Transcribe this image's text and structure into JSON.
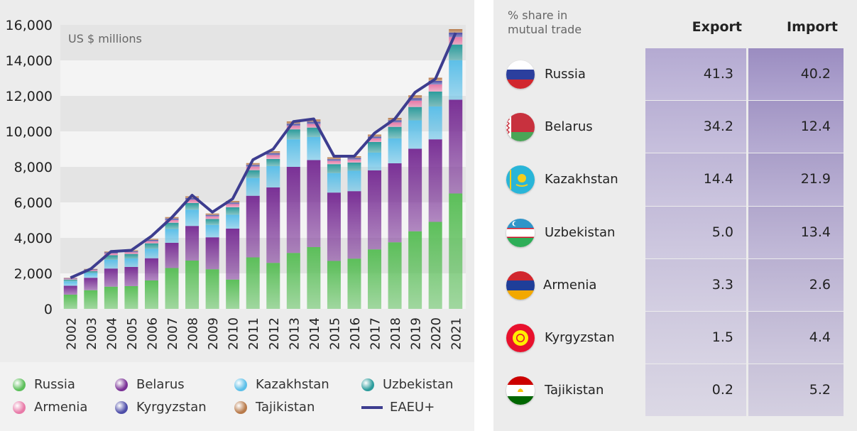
{
  "chart_data": {
    "type": "bar",
    "stacked": true,
    "unit_label": "US $ millions",
    "categories": [
      "2002",
      "2003",
      "2004",
      "2005",
      "2006",
      "2007",
      "2008",
      "2009",
      "2010",
      "2011",
      "2012",
      "2013",
      "2014",
      "2015",
      "2016",
      "2017",
      "2018",
      "2019",
      "2020",
      "2021"
    ],
    "y_ticks": [
      "16,000",
      "14,000",
      "12,000",
      "10,000",
      "8,000",
      "6,000",
      "4,000",
      "2,000",
      "0"
    ],
    "ylim": [
      0,
      16000
    ],
    "grid": true,
    "series": [
      {
        "name": "Russia",
        "color": "#5cbf5a",
        "values": [
          800,
          1050,
          1250,
          1280,
          1600,
          2300,
          2720,
          2230,
          1650,
          2900,
          2590,
          3150,
          3480,
          2700,
          2830,
          3350,
          3750,
          4370,
          4900,
          6500
        ]
      },
      {
        "name": "Belarus",
        "color": "#7a3196",
        "values": [
          500,
          700,
          1020,
          1080,
          1250,
          1420,
          1950,
          1800,
          2870,
          3470,
          4250,
          4850,
          4900,
          3850,
          3800,
          4450,
          4450,
          4650,
          4650,
          5280
        ]
      },
      {
        "name": "Kazakhstan",
        "color": "#5cbfe8",
        "values": [
          250,
          270,
          500,
          480,
          540,
          780,
          920,
          700,
          780,
          1000,
          1200,
          1550,
          1300,
          1100,
          1150,
          1000,
          1400,
          1600,
          1850,
          2230
        ]
      },
      {
        "name": "Uzbekistan",
        "color": "#2c9c9c",
        "values": [
          100,
          100,
          250,
          250,
          300,
          350,
          370,
          330,
          420,
          440,
          400,
          560,
          530,
          500,
          460,
          600,
          650,
          750,
          840,
          880
        ]
      },
      {
        "name": "Armenia",
        "color": "#e87aa8",
        "values": [
          50,
          60,
          100,
          100,
          120,
          150,
          180,
          150,
          180,
          200,
          220,
          200,
          200,
          180,
          170,
          200,
          250,
          350,
          400,
          420
        ]
      },
      {
        "name": "Kyrgyzstan",
        "color": "#4d4da8",
        "values": [
          30,
          40,
          60,
          60,
          70,
          90,
          100,
          80,
          90,
          100,
          110,
          120,
          130,
          100,
          90,
          100,
          120,
          150,
          200,
          250
        ]
      },
      {
        "name": "Tajikistan",
        "color": "#b87a4a",
        "values": [
          20,
          30,
          50,
          50,
          60,
          80,
          100,
          80,
          90,
          100,
          110,
          130,
          130,
          110,
          100,
          120,
          140,
          160,
          180,
          200
        ]
      }
    ],
    "line": {
      "name": "EAEU+",
      "color": "#3d3d8f",
      "values": [
        1750,
        2250,
        3230,
        3300,
        4100,
        5150,
        6400,
        5450,
        6200,
        8400,
        9000,
        10550,
        10700,
        8600,
        8600,
        9900,
        10700,
        12200,
        12950,
        15550
      ]
    },
    "legend": [
      {
        "name": "Russia",
        "color": "#5cbf5a",
        "shape": "dot"
      },
      {
        "name": "Belarus",
        "color": "#7a3196",
        "shape": "dot"
      },
      {
        "name": "Kazakhstan",
        "color": "#5cbfe8",
        "shape": "dot"
      },
      {
        "name": "Uzbekistan",
        "color": "#2c9c9c",
        "shape": "dot"
      },
      {
        "name": "Armenia",
        "color": "#e87aa8",
        "shape": "dot"
      },
      {
        "name": "Kyrgyzstan",
        "color": "#4d4da8",
        "shape": "dot"
      },
      {
        "name": "Tajikistan",
        "color": "#b87a4a",
        "shape": "dot"
      },
      {
        "name": "EAEU+",
        "color": "#3d3d8f",
        "shape": "line"
      }
    ]
  },
  "table": {
    "header_label": "% share in mutual trade",
    "col_export": "Export",
    "col_import": "Import",
    "rows": [
      {
        "country": "Russia",
        "export": "41.3",
        "import": "40.2",
        "flag": "russia-flag-icon"
      },
      {
        "country": "Belarus",
        "export": "34.2",
        "import": "12.4",
        "flag": "belarus-flag-icon"
      },
      {
        "country": "Kazakhstan",
        "export": "14.4",
        "import": "21.9",
        "flag": "kazakhstan-flag-icon"
      },
      {
        "country": "Uzbekistan",
        "export": "5.0",
        "import": "13.4",
        "flag": "uzbekistan-flag-icon"
      },
      {
        "country": "Armenia",
        "export": "3.3",
        "import": "2.6",
        "flag": "armenia-flag-icon"
      },
      {
        "country": "Kyrgyzstan",
        "export": "1.5",
        "import": "4.4",
        "flag": "kyrgyzstan-flag-icon"
      },
      {
        "country": "Tajikistan",
        "export": "0.2",
        "import": "5.2",
        "flag": "tajikistan-flag-icon"
      }
    ]
  }
}
